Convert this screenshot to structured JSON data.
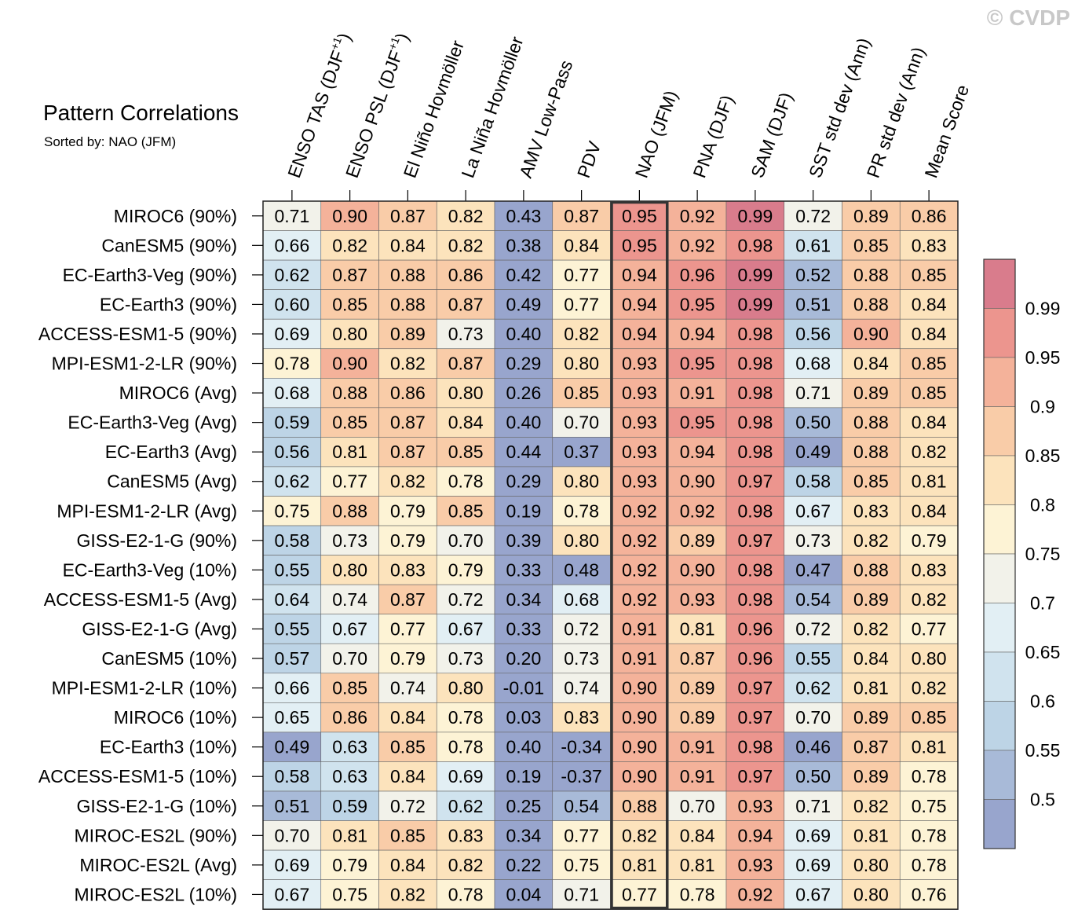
{
  "watermark": "© CVDP",
  "chart_data": {
    "type": "heatmap",
    "title": "Pattern Correlations",
    "subtitle": "Sorted by: NAO (JFM)",
    "highlight_column": "NAO (JFM)",
    "columns": [
      {
        "text": "ENSO TAS (DJF",
        "sup": "+1",
        "tail": ")"
      },
      {
        "text": "ENSO PSL (DJF",
        "sup": "+1",
        "tail": ")"
      },
      {
        "text": "El Niño Hovmöller",
        "sup": "",
        "tail": ""
      },
      {
        "text": "La Niña Hovmöller",
        "sup": "",
        "tail": ""
      },
      {
        "text": "AMV Low-Pass",
        "sup": "",
        "tail": ""
      },
      {
        "text": "PDV",
        "sup": "",
        "tail": ""
      },
      {
        "text": "NAO (JFM)",
        "sup": "",
        "tail": ""
      },
      {
        "text": "PNA (DJF)",
        "sup": "",
        "tail": ""
      },
      {
        "text": "SAM (DJF)",
        "sup": "",
        "tail": ""
      },
      {
        "text": "SST std dev (Ann)",
        "sup": "",
        "tail": ""
      },
      {
        "text": "PR std dev (Ann)",
        "sup": "",
        "tail": ""
      },
      {
        "text": "Mean Score",
        "sup": "",
        "tail": ""
      }
    ],
    "rows": [
      {
        "name": "MIROC6 (90%)",
        "values": [
          0.71,
          0.9,
          0.87,
          0.82,
          0.43,
          0.87,
          0.95,
          0.92,
          0.99,
          0.72,
          0.89,
          0.86
        ]
      },
      {
        "name": "CanESM5 (90%)",
        "values": [
          0.66,
          0.82,
          0.84,
          0.82,
          0.38,
          0.84,
          0.95,
          0.92,
          0.98,
          0.61,
          0.85,
          0.83
        ]
      },
      {
        "name": "EC-Earth3-Veg (90%)",
        "values": [
          0.62,
          0.87,
          0.88,
          0.86,
          0.42,
          0.77,
          0.94,
          0.96,
          0.99,
          0.52,
          0.88,
          0.85
        ]
      },
      {
        "name": "EC-Earth3 (90%)",
        "values": [
          0.6,
          0.85,
          0.88,
          0.87,
          0.49,
          0.77,
          0.94,
          0.95,
          0.99,
          0.51,
          0.88,
          0.84
        ]
      },
      {
        "name": "ACCESS-ESM1-5 (90%)",
        "values": [
          0.69,
          0.8,
          0.89,
          0.73,
          0.4,
          0.82,
          0.94,
          0.94,
          0.98,
          0.56,
          0.9,
          0.84
        ]
      },
      {
        "name": "MPI-ESM1-2-LR (90%)",
        "values": [
          0.78,
          0.9,
          0.82,
          0.87,
          0.29,
          0.8,
          0.93,
          0.95,
          0.98,
          0.68,
          0.84,
          0.85
        ]
      },
      {
        "name": "MIROC6 (Avg)",
        "values": [
          0.68,
          0.88,
          0.86,
          0.8,
          0.26,
          0.85,
          0.93,
          0.91,
          0.98,
          0.71,
          0.89,
          0.85
        ]
      },
      {
        "name": "EC-Earth3-Veg (Avg)",
        "values": [
          0.59,
          0.85,
          0.87,
          0.84,
          0.4,
          0.7,
          0.93,
          0.95,
          0.98,
          0.5,
          0.88,
          0.84
        ]
      },
      {
        "name": "EC-Earth3 (Avg)",
        "values": [
          0.56,
          0.81,
          0.87,
          0.85,
          0.44,
          0.37,
          0.93,
          0.94,
          0.98,
          0.49,
          0.88,
          0.82
        ]
      },
      {
        "name": "CanESM5 (Avg)",
        "values": [
          0.62,
          0.77,
          0.82,
          0.78,
          0.29,
          0.8,
          0.93,
          0.9,
          0.97,
          0.58,
          0.85,
          0.81
        ]
      },
      {
        "name": "MPI-ESM1-2-LR (Avg)",
        "values": [
          0.75,
          0.88,
          0.79,
          0.85,
          0.19,
          0.78,
          0.92,
          0.92,
          0.98,
          0.67,
          0.83,
          0.84
        ]
      },
      {
        "name": "GISS-E2-1-G (90%)",
        "values": [
          0.58,
          0.73,
          0.79,
          0.7,
          0.39,
          0.8,
          0.92,
          0.89,
          0.97,
          0.73,
          0.82,
          0.79
        ]
      },
      {
        "name": "EC-Earth3-Veg (10%)",
        "values": [
          0.55,
          0.8,
          0.83,
          0.79,
          0.33,
          0.48,
          0.92,
          0.9,
          0.98,
          0.47,
          0.88,
          0.83
        ]
      },
      {
        "name": "ACCESS-ESM1-5 (Avg)",
        "values": [
          0.64,
          0.74,
          0.87,
          0.72,
          0.34,
          0.68,
          0.92,
          0.93,
          0.98,
          0.54,
          0.89,
          0.82
        ]
      },
      {
        "name": "GISS-E2-1-G (Avg)",
        "values": [
          0.55,
          0.67,
          0.77,
          0.67,
          0.33,
          0.72,
          0.91,
          0.81,
          0.96,
          0.72,
          0.82,
          0.77
        ]
      },
      {
        "name": "CanESM5 (10%)",
        "values": [
          0.57,
          0.7,
          0.79,
          0.73,
          0.2,
          0.73,
          0.91,
          0.87,
          0.96,
          0.55,
          0.84,
          0.8
        ]
      },
      {
        "name": "MPI-ESM1-2-LR (10%)",
        "values": [
          0.66,
          0.85,
          0.74,
          0.8,
          -0.01,
          0.74,
          0.9,
          0.89,
          0.97,
          0.62,
          0.81,
          0.82
        ]
      },
      {
        "name": "MIROC6 (10%)",
        "values": [
          0.65,
          0.86,
          0.84,
          0.78,
          0.03,
          0.83,
          0.9,
          0.89,
          0.97,
          0.7,
          0.89,
          0.85
        ]
      },
      {
        "name": "EC-Earth3 (10%)",
        "values": [
          0.49,
          0.63,
          0.85,
          0.78,
          0.4,
          -0.34,
          0.9,
          0.91,
          0.98,
          0.46,
          0.87,
          0.81
        ]
      },
      {
        "name": "ACCESS-ESM1-5 (10%)",
        "values": [
          0.58,
          0.63,
          0.84,
          0.69,
          0.19,
          -0.37,
          0.9,
          0.91,
          0.97,
          0.5,
          0.89,
          0.78
        ]
      },
      {
        "name": "GISS-E2-1-G (10%)",
        "values": [
          0.51,
          0.59,
          0.72,
          0.62,
          0.25,
          0.54,
          0.88,
          0.7,
          0.93,
          0.71,
          0.82,
          0.75
        ]
      },
      {
        "name": "MIROC-ES2L (90%)",
        "values": [
          0.7,
          0.81,
          0.85,
          0.83,
          0.34,
          0.77,
          0.82,
          0.84,
          0.94,
          0.69,
          0.81,
          0.78
        ]
      },
      {
        "name": "MIROC-ES2L (Avg)",
        "values": [
          0.69,
          0.79,
          0.84,
          0.82,
          0.22,
          0.75,
          0.81,
          0.81,
          0.93,
          0.69,
          0.8,
          0.78
        ]
      },
      {
        "name": "MIROC-ES2L (10%)",
        "values": [
          0.67,
          0.75,
          0.82,
          0.78,
          0.04,
          0.71,
          0.77,
          0.78,
          0.92,
          0.67,
          0.8,
          0.76
        ]
      }
    ],
    "colorbar": {
      "labels": [
        "0.99",
        "0.95",
        "0.9",
        "0.85",
        "0.8",
        "0.75",
        "0.7",
        "0.65",
        "0.6",
        "0.55",
        "0.5"
      ],
      "thresholds": [
        0.5,
        0.55,
        0.6,
        0.65,
        0.7,
        0.75,
        0.8,
        0.85,
        0.9,
        0.95,
        0.99
      ],
      "colors": [
        "#98a5cd",
        "#a8bad8",
        "#bdd4e6",
        "#d0e3ee",
        "#e2eff4",
        "#f2f2ea",
        "#fdf3d5",
        "#fce3bc",
        "#f9cca8",
        "#f4b29a",
        "#ec958e",
        "#d97c8c"
      ]
    }
  }
}
